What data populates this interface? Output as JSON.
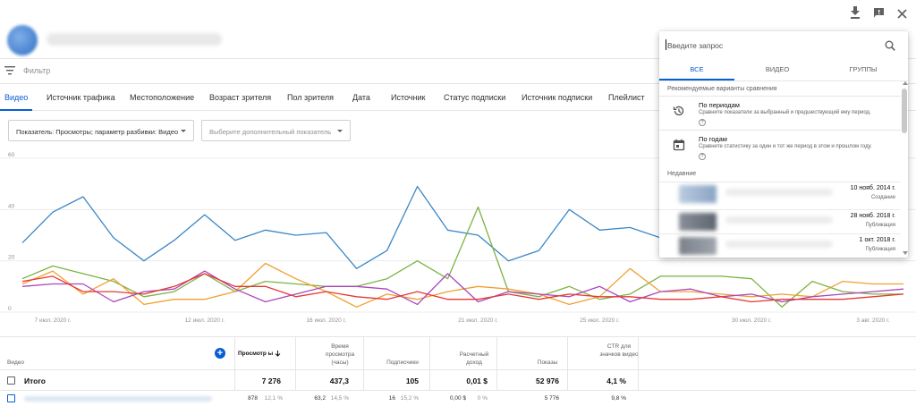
{
  "header": {
    "icons": [
      "download-icon",
      "feedback-icon",
      "close-icon"
    ]
  },
  "filter": {
    "label": "Фильтр"
  },
  "tabs": [
    {
      "label": "Видео",
      "active": true
    },
    {
      "label": "Источник трафика"
    },
    {
      "label": "Местоположение"
    },
    {
      "label": "Возраст зрителя"
    },
    {
      "label": "Пол зрителя"
    },
    {
      "label": "Дата"
    },
    {
      "label": "Источник"
    },
    {
      "label": "Статус подписки"
    },
    {
      "label": "Источник подписки"
    },
    {
      "label": "Плейлист"
    }
  ],
  "selects": {
    "metric": "Показатель: Просмотры; параметр разбивки: Видео",
    "extra": "Выберите дополнительный показатель"
  },
  "chart_data": {
    "type": "line",
    "ylim": [
      0,
      60
    ],
    "yticks": [
      "60",
      "40",
      "20",
      "0"
    ],
    "xtick_labels": [
      "7 июл. 2020 г.",
      "12 июл. 2020 г.",
      "16 июл. 2020 г.",
      "21 июл. 2020 г.",
      "25 июл. 2020 г.",
      "30 июл. 2020 г.",
      "3 авг. 2020 г."
    ],
    "x": [
      "06.07",
      "07.07",
      "08.07",
      "09.07",
      "10.07",
      "11.07",
      "12.07",
      "13.07",
      "14.07",
      "15.07",
      "16.07",
      "17.07",
      "18.07",
      "19.07",
      "20.07",
      "21.07",
      "22.07",
      "23.07",
      "24.07",
      "25.07",
      "26.07",
      "27.07",
      "28.07",
      "29.07",
      "30.07",
      "31.07",
      "01.08",
      "02.08",
      "03.08",
      "04.08"
    ],
    "series": [
      {
        "color": "#3a87c8",
        "values": [
          27,
          39,
          45,
          29,
          20,
          28,
          38,
          28,
          32,
          30,
          31,
          17,
          24,
          49,
          32,
          30,
          20,
          24,
          40,
          32,
          33,
          29,
          30,
          28,
          32,
          31,
          28,
          27,
          26,
          26
        ]
      },
      {
        "color": "#7cb342",
        "values": [
          13,
          18,
          15,
          12,
          6,
          8,
          15,
          8,
          12,
          11,
          10,
          10,
          13,
          20,
          13,
          41,
          8,
          6,
          10,
          5,
          7,
          14,
          14,
          14,
          13,
          2,
          12,
          8,
          7,
          7
        ]
      },
      {
        "color": "#f0a030",
        "values": [
          11,
          16,
          7,
          13,
          3,
          5,
          5,
          8,
          19,
          13,
          8,
          2,
          7,
          5,
          8,
          10,
          9,
          7,
          3,
          6,
          17,
          8,
          8,
          7,
          6,
          7,
          6,
          12,
          11,
          11
        ]
      },
      {
        "color": "#ab47bc",
        "values": [
          10,
          11,
          11,
          4,
          8,
          9,
          16,
          9,
          4,
          7,
          10,
          10,
          9,
          3,
          15,
          4,
          8,
          7,
          6,
          10,
          4,
          8,
          9,
          6,
          7,
          4,
          6,
          7,
          8,
          9
        ]
      },
      {
        "color": "#e53935",
        "values": [
          12,
          14,
          8,
          8,
          7,
          10,
          15,
          10,
          10,
          6,
          8,
          6,
          5,
          8,
          5,
          5,
          7,
          5,
          7,
          6,
          6,
          5,
          5,
          6,
          4,
          5,
          5,
          5,
          6,
          7
        ]
      }
    ]
  },
  "table": {
    "headers": {
      "video": "Видео",
      "views": "Просмотр ы",
      "watch_time": "Время просмотра (часы)",
      "subscribers": "Подписчики",
      "revenue": "Расчетный доход",
      "impressions": "Показы",
      "ctr": "CTR для значков видео"
    },
    "total": {
      "label": "Итого",
      "views": "7 276",
      "watch_time": "437,3",
      "subscribers": "105",
      "revenue": "0,01 $",
      "impressions": "52 976",
      "ctr": "4,1 %"
    },
    "row1": {
      "views": "878",
      "views_pct": "12,1 %",
      "watch_time": "63,2",
      "watch_pct": "14,5 %",
      "subscribers": "16",
      "subs_pct": "15,2 %",
      "revenue": "0,00 $",
      "rev_pct": "0 %",
      "impressions": "5 776",
      "ctr": "9,8 %"
    }
  },
  "popup": {
    "search_placeholder": "Введите запрос",
    "tabs": [
      "ВСЕ",
      "ВИДЕО",
      "ГРУППЫ"
    ],
    "recommended_label": "Рекомендуемые варианты сравнения",
    "options": [
      {
        "title": "По периодам",
        "desc": "Сравните показатели за выбранный и предшествующий ему период.",
        "icon": "history-icon"
      },
      {
        "title": "По годам",
        "desc": "Сравните статистику за один и тот же период в этом и прошлом году.",
        "icon": "calendar-icon"
      }
    ],
    "recent_label": "Недавние",
    "recent": [
      {
        "date": "10 нояб. 2014 г.",
        "type": "Создание"
      },
      {
        "date": "28 нояб. 2018 г.",
        "type": "Публикация"
      },
      {
        "date": "1 окт. 2018 г.",
        "type": "Публикация"
      }
    ]
  }
}
